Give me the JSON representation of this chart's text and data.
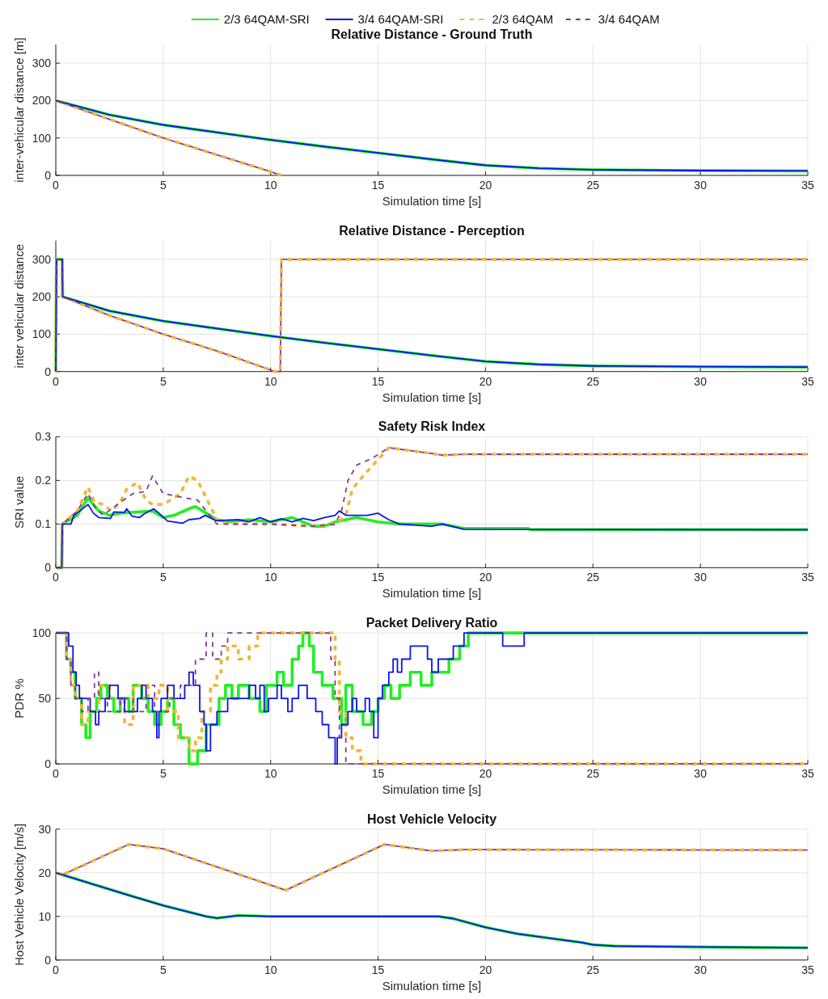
{
  "chart_data": [
    {
      "type": "line",
      "title": "Relative Distance - Ground Truth",
      "xlabel": "Simulation time [s]",
      "ylabel": "inter-vehicular distance [m]",
      "xlim": [
        0,
        35
      ],
      "xticks": [
        0,
        5,
        10,
        15,
        20,
        25,
        30,
        35
      ],
      "ylim": [
        0,
        350
      ],
      "yticks": [
        0,
        100,
        200,
        300
      ],
      "grid": true,
      "legend": "top",
      "series": [
        {
          "name": "2/3 64QAM-SRI",
          "color": "#22ee22",
          "line_style": "solid",
          "x": [
            0,
            2.5,
            5,
            7.5,
            10,
            12.5,
            15,
            17.5,
            20,
            22.5,
            25,
            30,
            35
          ],
          "values": [
            200,
            162,
            135,
            115,
            95,
            77,
            60,
            43,
            27,
            19,
            15,
            13,
            12
          ]
        },
        {
          "name": "3/4 64QAM-SRI",
          "color": "#0a14f0",
          "line_style": "solid",
          "x": [
            0,
            2.5,
            5,
            7.5,
            10,
            12.5,
            15,
            17.5,
            20,
            22.5,
            25,
            30,
            35
          ],
          "values": [
            200,
            162,
            135,
            115,
            95,
            77,
            60,
            43,
            27,
            19,
            15,
            13,
            12
          ]
        },
        {
          "name": "2/3 64QAM",
          "color": "#f2b53a",
          "line_style": "dashed",
          "x": [
            0,
            2.5,
            5,
            7.5,
            10,
            10.5
          ],
          "values": [
            200,
            150,
            100,
            55,
            10,
            0
          ]
        },
        {
          "name": "3/4 64QAM",
          "color": "#7e3c96",
          "line_style": "dashed",
          "x": [
            0,
            2.5,
            5,
            7.5,
            10,
            10.5
          ],
          "values": [
            200,
            150,
            100,
            55,
            10,
            0
          ]
        }
      ]
    },
    {
      "type": "line",
      "title": "Relative Distance - Perception",
      "xlabel": "Simulation time [s]",
      "ylabel": "inter vehicular distance",
      "xlim": [
        0,
        35
      ],
      "xticks": [
        0,
        5,
        10,
        15,
        20,
        25,
        30,
        35
      ],
      "ylim": [
        0,
        350
      ],
      "yticks": [
        0,
        100,
        200,
        300
      ],
      "grid": true,
      "series": [
        {
          "color": "#22ee22",
          "line_style": "solid",
          "x": [
            0,
            0.03,
            0.3,
            0.32,
            2.5,
            5,
            7.5,
            10,
            12.5,
            15,
            17.5,
            20,
            22.5,
            25,
            30,
            35
          ],
          "values": [
            0,
            300,
            300,
            200,
            162,
            135,
            115,
            95,
            77,
            60,
            43,
            27,
            19,
            15,
            13,
            12
          ]
        },
        {
          "color": "#0a14f0",
          "line_style": "solid",
          "x": [
            0,
            0.03,
            0.3,
            0.32,
            2.5,
            5,
            7.5,
            10,
            12.5,
            15,
            17.5,
            20,
            22.5,
            25,
            30,
            35
          ],
          "values": [
            0,
            300,
            300,
            200,
            162,
            135,
            115,
            95,
            77,
            60,
            43,
            27,
            19,
            15,
            13,
            12
          ]
        },
        {
          "color": "#f2b53a",
          "line_style": "dashed",
          "x": [
            0,
            0.03,
            0.3,
            0.32,
            2.5,
            5,
            7.5,
            10.2,
            10.45,
            10.5,
            35
          ],
          "values": [
            0,
            300,
            300,
            200,
            150,
            100,
            55,
            0,
            0,
            300,
            300
          ]
        },
        {
          "color": "#7e3c96",
          "line_style": "dashed",
          "x": [
            0,
            0.03,
            0.3,
            0.32,
            2.5,
            5,
            7.5,
            10.2,
            10.45,
            10.5,
            35
          ],
          "values": [
            0,
            300,
            300,
            200,
            150,
            100,
            55,
            0,
            0,
            300,
            300
          ]
        }
      ]
    },
    {
      "type": "line",
      "title": "Safety Risk Index",
      "xlabel": "Simulation time [s]",
      "ylabel": "SRI value",
      "xlim": [
        0,
        35
      ],
      "xticks": [
        0,
        5,
        10,
        15,
        20,
        25,
        30,
        35
      ],
      "ylim": [
        0,
        0.3
      ],
      "yticks": [
        0,
        0.1,
        0.2,
        0.3
      ],
      "grid": true,
      "series": [
        {
          "color": "#22ee22",
          "line_style": "solid",
          "x": [
            0,
            0.28,
            0.3,
            1,
            1.5,
            2,
            2.5,
            3,
            4.5,
            5,
            5.5,
            6.2,
            6.5,
            7,
            7.5,
            8,
            9,
            10,
            11,
            12,
            12.5,
            13,
            14,
            15,
            16,
            17,
            18,
            19,
            22,
            22.1,
            35
          ],
          "values": [
            0,
            0,
            0.1,
            0.12,
            0.16,
            0.13,
            0.12,
            0.125,
            0.13,
            0.115,
            0.12,
            0.135,
            0.14,
            0.125,
            0.11,
            0.105,
            0.11,
            0.105,
            0.115,
            0.095,
            0.095,
            0.105,
            0.115,
            0.105,
            0.1,
            0.1,
            0.1,
            0.09,
            0.09,
            0.087,
            0.087
          ]
        },
        {
          "color": "#0a14f0",
          "line_style": "solid",
          "x": [
            0,
            0.28,
            0.3,
            0.7,
            0.85,
            1.5,
            1.75,
            2,
            2.55,
            2.7,
            3.2,
            3.3,
            3.55,
            3.9,
            4.1,
            4.55,
            4.8,
            5.2,
            5.9,
            6.2,
            6.7,
            6.95,
            7.45,
            8.5,
            9,
            9.5,
            10,
            10.5,
            11,
            11.5,
            12,
            12.5,
            13,
            13.2,
            13.5,
            14.5,
            15,
            15.5,
            16,
            17.5,
            18,
            19,
            35
          ],
          "values": [
            0,
            0,
            0.1,
            0.1,
            0.12,
            0.145,
            0.125,
            0.115,
            0.113,
            0.128,
            0.127,
            0.135,
            0.118,
            0.115,
            0.123,
            0.135,
            0.125,
            0.107,
            0.102,
            0.11,
            0.113,
            0.12,
            0.108,
            0.11,
            0.105,
            0.115,
            0.105,
            0.112,
            0.105,
            0.113,
            0.108,
            0.115,
            0.12,
            0.13,
            0.12,
            0.12,
            0.125,
            0.11,
            0.1,
            0.095,
            0.1,
            0.088,
            0.087
          ]
        },
        {
          "color": "#f2b53a",
          "line_style": "dashed",
          "x": [
            0,
            0.28,
            0.3,
            1,
            1.5,
            1.8,
            2.2,
            2.6,
            3,
            3.3,
            3.8,
            4.2,
            4.5,
            5,
            5.5,
            5.8,
            6.2,
            6.6,
            7,
            7.5,
            8,
            10,
            12,
            13,
            13.5,
            13.8,
            14.3,
            15.5,
            17,
            18,
            19,
            35
          ],
          "values": [
            0,
            0,
            0.1,
            0.13,
            0.185,
            0.15,
            0.145,
            0.13,
            0.15,
            0.18,
            0.195,
            0.155,
            0.145,
            0.145,
            0.16,
            0.17,
            0.21,
            0.2,
            0.16,
            0.11,
            0.1,
            0.1,
            0.095,
            0.1,
            0.12,
            0.18,
            0.21,
            0.275,
            0.265,
            0.258,
            0.26,
            0.26
          ]
        },
        {
          "color": "#7e3c96",
          "line_style": "dashed",
          "x": [
            0,
            0.28,
            0.3,
            1,
            1.5,
            1.8,
            2.2,
            3,
            3.6,
            4.2,
            4.5,
            5,
            6,
            6.6,
            7,
            7.5,
            10,
            12,
            13,
            13.3,
            13.6,
            14,
            14.7,
            15.5,
            17,
            18,
            19,
            35
          ],
          "values": [
            0,
            0,
            0.1,
            0.13,
            0.17,
            0.14,
            0.12,
            0.15,
            0.17,
            0.175,
            0.21,
            0.17,
            0.16,
            0.155,
            0.13,
            0.1,
            0.1,
            0.095,
            0.1,
            0.13,
            0.2,
            0.235,
            0.25,
            0.275,
            0.265,
            0.258,
            0.26,
            0.26
          ]
        }
      ]
    },
    {
      "type": "step",
      "title": "Packet Delivery Ratio",
      "xlabel": "Simulation time [s]",
      "ylabel": "PDR %",
      "xlim": [
        0,
        35
      ],
      "xticks": [
        0,
        5,
        10,
        15,
        20,
        25,
        30,
        35
      ],
      "ylim": [
        0,
        100
      ],
      "yticks": [
        0,
        50,
        100
      ],
      "grid": true,
      "series": [
        {
          "color": "#22ee22",
          "line_style": "solid",
          "x": [
            0,
            0.5,
            0.7,
            0.9,
            1.2,
            1.4,
            1.6,
            1.9,
            2.1,
            2.4,
            2.7,
            3.0,
            3.4,
            3.6,
            4.0,
            4.3,
            4.6,
            4.9,
            5.2,
            5.5,
            5.8,
            6.2,
            6.6,
            7.0,
            7.6,
            7.9,
            8.2,
            8.5,
            9.0,
            9.5,
            9.8,
            10.3,
            10.6,
            11.0,
            11.3,
            11.5,
            11.8,
            12.0,
            12.4,
            12.9,
            13.3,
            13.5,
            13.8,
            14.3,
            14.7,
            15.0,
            15.3,
            15.6,
            16.0,
            16.5,
            17.0,
            17.5,
            18.3,
            18.8,
            19.2,
            35
          ],
          "values": [
            100,
            80,
            70,
            50,
            30,
            20,
            40,
            50,
            60,
            50,
            40,
            50,
            40,
            60,
            50,
            40,
            30,
            40,
            50,
            30,
            20,
            0,
            10,
            30,
            50,
            60,
            50,
            60,
            50,
            40,
            60,
            70,
            60,
            80,
            90,
            100,
            90,
            70,
            60,
            50,
            30,
            60,
            40,
            30,
            40,
            50,
            60,
            50,
            60,
            70,
            60,
            70,
            80,
            90,
            100,
            100
          ]
        },
        {
          "color": "#0a14f0",
          "line_style": "solid",
          "x": [
            0,
            0.6,
            0.8,
            0.95,
            1.1,
            1.6,
            1.85,
            2.0,
            2.3,
            2.5,
            2.9,
            3.2,
            3.8,
            4.0,
            4.2,
            4.5,
            4.7,
            4.8,
            4.9,
            5.2,
            5.5,
            6.0,
            6.2,
            6.4,
            6.7,
            6.9,
            7.0,
            7.2,
            7.5,
            8.0,
            9.0,
            9.3,
            9.5,
            9.7,
            9.9,
            10.3,
            10.5,
            10.8,
            11.0,
            11.3,
            11.7,
            12.1,
            12.4,
            12.7,
            13.0,
            13.1,
            13.3,
            13.6,
            13.8,
            14.0,
            14.4,
            14.6,
            14.8,
            15.0,
            15.2,
            15.5,
            15.7,
            15.9,
            16.1,
            16.5,
            17.3,
            17.5,
            17.8,
            18.5,
            19.0,
            20.8,
            21.8,
            35
          ],
          "values": [
            100,
            90,
            70,
            60,
            50,
            40,
            30,
            40,
            50,
            60,
            50,
            40,
            50,
            60,
            50,
            40,
            20,
            40,
            50,
            60,
            50,
            60,
            70,
            60,
            40,
            30,
            10,
            30,
            40,
            50,
            60,
            50,
            60,
            40,
            50,
            60,
            50,
            40,
            50,
            60,
            50,
            40,
            30,
            20,
            0,
            20,
            30,
            40,
            50,
            40,
            50,
            40,
            20,
            50,
            60,
            70,
            80,
            70,
            80,
            90,
            80,
            70,
            80,
            90,
            100,
            90,
            100,
            100
          ]
        },
        {
          "color": "#f2b53a",
          "line_style": "dashed",
          "x": [
            0,
            0.5,
            0.7,
            0.9,
            1.2,
            1.5,
            2.0,
            2.5,
            3.2,
            3.6,
            4.3,
            4.8,
            5.2,
            5.7,
            6.2,
            6.5,
            6.8,
            7.2,
            7.5,
            7.7,
            8.0,
            8.5,
            9.0,
            9.4,
            13.0,
            13.2,
            13.5,
            13.8,
            14.2,
            14.4,
            35
          ],
          "values": [
            100,
            80,
            60,
            50,
            30,
            40,
            60,
            50,
            30,
            60,
            50,
            60,
            40,
            20,
            10,
            20,
            40,
            60,
            70,
            80,
            90,
            80,
            90,
            100,
            80,
            40,
            20,
            10,
            0,
            0,
            0
          ]
        },
        {
          "color": "#7e3c96",
          "line_style": "dashed",
          "x": [
            0,
            0.5,
            0.7,
            0.9,
            1.2,
            1.5,
            1.8,
            2.0,
            2.4,
            3.0,
            3.6,
            4.2,
            4.6,
            5.3,
            5.8,
            6.5,
            7.0,
            7.3,
            7.7,
            8.0,
            8.7,
            12.8,
            13.0,
            13.2,
            13.5,
            13.7,
            35
          ],
          "values": [
            100,
            80,
            60,
            50,
            40,
            50,
            70,
            50,
            40,
            50,
            40,
            60,
            40,
            50,
            60,
            80,
            100,
            80,
            90,
            100,
            100,
            80,
            50,
            20,
            0,
            0,
            0
          ]
        }
      ]
    },
    {
      "type": "line",
      "title": "Host Vehicle Velocity",
      "xlabel": "Simulation time [s]",
      "ylabel": "Host Vehicle Velocity [m/s]",
      "xlim": [
        0,
        35
      ],
      "xticks": [
        0,
        5,
        10,
        15,
        20,
        25,
        30,
        35
      ],
      "ylim": [
        0,
        30
      ],
      "yticks": [
        0,
        10,
        20,
        30
      ],
      "grid": true,
      "series": [
        {
          "color": "#22ee22",
          "line_style": "solid",
          "x": [
            0,
            3.3,
            5,
            7,
            7.5,
            8.5,
            10,
            17.8,
            18.5,
            20,
            21.5,
            23,
            24.5,
            25,
            26,
            30,
            35
          ],
          "values": [
            20,
            15,
            12.5,
            10,
            9.6,
            10.2,
            10,
            10,
            9.5,
            7.5,
            6,
            5,
            4,
            3.5,
            3.2,
            3,
            2.8
          ]
        },
        {
          "color": "#0a14f0",
          "line_style": "solid",
          "x": [
            0,
            3.3,
            5,
            7,
            7.5,
            8.5,
            10,
            17.8,
            18.5,
            20,
            21.5,
            23,
            24.5,
            25,
            26,
            30,
            35
          ],
          "values": [
            20,
            15,
            12.5,
            10,
            9.6,
            10.2,
            10,
            10,
            9.5,
            7.5,
            6,
            5,
            4,
            3.5,
            3.2,
            3,
            2.8
          ]
        },
        {
          "color": "#f2b53a",
          "line_style": "dashed",
          "x": [
            0,
            0.3,
            3.4,
            5,
            10.7,
            15.3,
            17.5,
            19,
            35
          ],
          "values": [
            20,
            19.5,
            26.5,
            25.5,
            16,
            26.5,
            25,
            25.3,
            25.2
          ]
        },
        {
          "color": "#7e3c96",
          "line_style": "dashed",
          "x": [
            0,
            0.3,
            3.4,
            5,
            10.7,
            15.3,
            17.5,
            19,
            35
          ],
          "values": [
            20,
            19.5,
            26.5,
            25.5,
            16,
            26.5,
            25,
            25.3,
            25.2
          ]
        }
      ]
    }
  ]
}
